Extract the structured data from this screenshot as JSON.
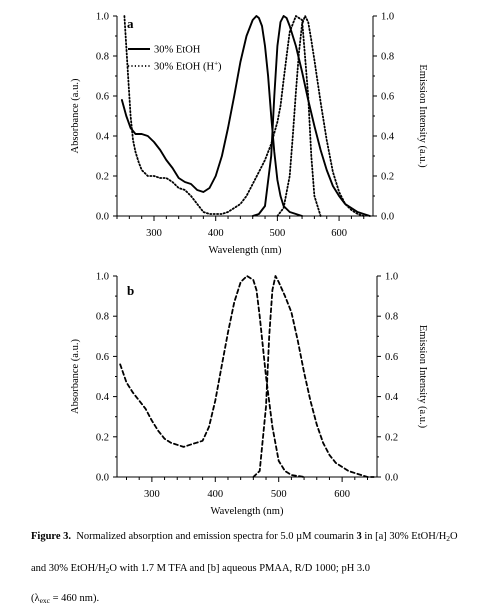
{
  "chart_data": [
    {
      "panel_label": "a",
      "type": "line",
      "xlabel": "Wavelength (nm)",
      "ylabel_left": "Absorbance (a.u.)",
      "ylabel_right": "Emission Intensity (a.u.)",
      "xlim": [
        240,
        655
      ],
      "ylim": [
        0,
        1
      ],
      "xticks": [
        "300",
        "400",
        "500",
        "600"
      ],
      "yticks": [
        "0.0",
        "0.2",
        "0.4",
        "0.6",
        "0.8",
        "1.0"
      ],
      "legend": {
        "placement": "top-left",
        "entries": [
          "30% EtOH",
          "30% EtOH (H"
        ],
        "superscript": "+",
        "closing": ")"
      },
      "series": [
        {
          "name": "30% EtOH",
          "kind": "absorption",
          "style": "solid",
          "x": [
            248,
            255,
            262,
            270,
            280,
            290,
            300,
            310,
            320,
            330,
            340,
            350,
            360,
            370,
            380,
            390,
            400,
            410,
            420,
            430,
            440,
            450,
            460,
            466,
            470,
            475,
            480,
            485,
            490,
            495,
            500,
            505,
            510,
            520,
            540
          ],
          "y": [
            0.58,
            0.5,
            0.44,
            0.41,
            0.41,
            0.4,
            0.37,
            0.33,
            0.28,
            0.24,
            0.19,
            0.17,
            0.16,
            0.13,
            0.12,
            0.14,
            0.2,
            0.3,
            0.44,
            0.6,
            0.77,
            0.9,
            0.98,
            1.0,
            0.99,
            0.95,
            0.85,
            0.7,
            0.5,
            0.32,
            0.18,
            0.1,
            0.05,
            0.02,
            0.0
          ]
        },
        {
          "name": "30% EtOH",
          "kind": "emission",
          "style": "solid",
          "x": [
            460,
            470,
            480,
            490,
            495,
            500,
            505,
            510,
            515,
            520,
            530,
            540,
            550,
            560,
            570,
            580,
            590,
            600,
            610,
            620,
            630,
            640,
            650
          ],
          "y": [
            0.0,
            0.01,
            0.05,
            0.3,
            0.6,
            0.85,
            0.97,
            1.0,
            0.99,
            0.95,
            0.85,
            0.72,
            0.58,
            0.45,
            0.33,
            0.23,
            0.15,
            0.1,
            0.06,
            0.04,
            0.02,
            0.01,
            0.0
          ]
        },
        {
          "name": "30% EtOH (H+)",
          "kind": "absorption",
          "style": "dotted",
          "x": [
            252,
            258,
            262,
            266,
            270,
            275,
            280,
            290,
            300,
            310,
            320,
            330,
            340,
            350,
            360,
            370,
            380,
            390,
            400,
            410,
            420,
            430,
            440,
            450,
            460,
            470,
            480,
            490,
            500,
            505,
            510,
            515,
            520,
            530,
            540,
            550,
            555,
            560,
            570
          ],
          "y": [
            1.0,
            0.7,
            0.5,
            0.38,
            0.32,
            0.27,
            0.23,
            0.2,
            0.2,
            0.19,
            0.19,
            0.17,
            0.14,
            0.13,
            0.1,
            0.06,
            0.02,
            0.01,
            0.01,
            0.01,
            0.02,
            0.04,
            0.06,
            0.1,
            0.16,
            0.22,
            0.28,
            0.36,
            0.47,
            0.55,
            0.68,
            0.8,
            0.92,
            1.0,
            0.98,
            0.6,
            0.3,
            0.1,
            0.0
          ]
        },
        {
          "name": "30% EtOH (H+)",
          "kind": "emission",
          "style": "dotted",
          "x": [
            500,
            510,
            520,
            525,
            530,
            535,
            540,
            545,
            550,
            555,
            560,
            570,
            580,
            590,
            600,
            610,
            620,
            630,
            640
          ],
          "y": [
            0.0,
            0.04,
            0.2,
            0.4,
            0.62,
            0.82,
            0.96,
            1.0,
            0.97,
            0.88,
            0.78,
            0.57,
            0.38,
            0.22,
            0.12,
            0.06,
            0.03,
            0.01,
            0.0
          ]
        }
      ]
    },
    {
      "panel_label": "b",
      "type": "line",
      "xlabel": "Wavelength (nm)",
      "ylabel_left": "Absorbance (a.u.)",
      "ylabel_right": "Emission Intensity (a.u.)",
      "xlim": [
        245,
        655
      ],
      "ylim": [
        0,
        1
      ],
      "xticks": [
        "300",
        "400",
        "500",
        "600"
      ],
      "yticks": [
        "0.0",
        "0.2",
        "0.4",
        "0.6",
        "0.8",
        "1.0"
      ],
      "series": [
        {
          "kind": "absorption",
          "style": "dashed",
          "x": [
            250,
            260,
            270,
            280,
            290,
            300,
            310,
            320,
            330,
            340,
            350,
            360,
            370,
            380,
            390,
            400,
            410,
            420,
            430,
            440,
            450,
            460,
            465,
            470,
            480,
            490,
            500,
            510,
            520,
            540
          ],
          "y": [
            0.56,
            0.47,
            0.42,
            0.38,
            0.34,
            0.28,
            0.23,
            0.19,
            0.17,
            0.16,
            0.15,
            0.16,
            0.17,
            0.18,
            0.25,
            0.38,
            0.55,
            0.72,
            0.87,
            0.97,
            1.0,
            0.98,
            0.93,
            0.8,
            0.5,
            0.25,
            0.08,
            0.03,
            0.01,
            0.0
          ]
        },
        {
          "kind": "emission",
          "style": "dashed",
          "x": [
            460,
            470,
            480,
            485,
            490,
            495,
            500,
            510,
            520,
            530,
            540,
            550,
            560,
            570,
            580,
            590,
            600,
            610,
            620,
            630,
            640,
            650
          ],
          "y": [
            0.0,
            0.03,
            0.35,
            0.7,
            0.93,
            1.0,
            0.97,
            0.9,
            0.82,
            0.68,
            0.52,
            0.38,
            0.26,
            0.17,
            0.11,
            0.07,
            0.05,
            0.03,
            0.02,
            0.01,
            0.0,
            0.0
          ]
        }
      ]
    }
  ],
  "caption": {
    "figure_label": "Figure 3.",
    "line1_text": "Normalized absorption and emission spectra for 5.0 µM coumarin ",
    "line1_compound": "3",
    "line1_after": " in [a] 30% EtOH/H",
    "line1_sub": "2",
    "line1_end": "O",
    "line2_pre": "and 30% EtOH/H",
    "line2_sub": "2",
    "line2_post": "O  with 1.7 M TFA and [b] aqueous PMAA, R/D 1000; pH 3.0",
    "line3_pre": "(λ",
    "line3_sub": "exc",
    "line3_post": " = 460 nm)."
  }
}
